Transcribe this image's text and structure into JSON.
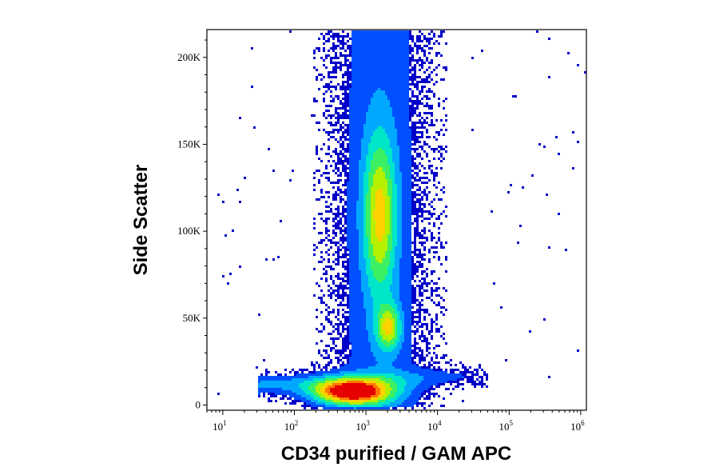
{
  "chart_data": {
    "type": "scatter",
    "subtype": "flow-cytometry-density-pseudocolor",
    "title": "",
    "xlabel": "CD34 purified / GAM APC",
    "ylabel": "Side Scatter",
    "x_scale": "log",
    "xlim": [
      6,
      1200000
    ],
    "ylim": [
      -3000,
      216000
    ],
    "x_ticks": [
      {
        "value": 10,
        "base": "10",
        "exp": "1"
      },
      {
        "value": 100,
        "base": "10",
        "exp": "2"
      },
      {
        "value": 1000,
        "base": "10",
        "exp": "3"
      },
      {
        "value": 10000,
        "base": "10",
        "exp": "4"
      },
      {
        "value": 100000,
        "base": "10",
        "exp": "5"
      },
      {
        "value": 1000000,
        "base": "10",
        "exp": "6"
      }
    ],
    "y_ticks": [
      {
        "value": 0,
        "label": "0"
      },
      {
        "value": 50000,
        "label": "50K"
      },
      {
        "value": 100000,
        "label": "100K"
      },
      {
        "value": 150000,
        "label": "150K"
      },
      {
        "value": 200000,
        "label": "200K"
      }
    ],
    "colormap": [
      "#0000c8",
      "#0050ff",
      "#00a8ff",
      "#00e6c8",
      "#3cf064",
      "#b4f000",
      "#ffd200",
      "#ff7800",
      "#e60000"
    ],
    "populations": [
      {
        "name": "low-SSC cluster",
        "x_center": 600,
        "y_center": 8000,
        "x_spread_decades": 0.38,
        "y_spread": 5000,
        "density": 1.0
      },
      {
        "name": "main vertical cluster",
        "x_center": 1500,
        "y_center": 110000,
        "x_spread_decades": 0.16,
        "y_spread": 32000,
        "density": 0.55
      },
      {
        "name": "mid cluster",
        "x_center": 2000,
        "y_center": 45000,
        "x_spread_decades": 0.12,
        "y_spread": 9000,
        "density": 0.5
      },
      {
        "name": "horizontal tail",
        "x_range": [
          30,
          50000
        ],
        "y_center": 12000,
        "y_spread": 4000,
        "density": 0.25
      }
    ],
    "grid": false,
    "legend": "none"
  }
}
